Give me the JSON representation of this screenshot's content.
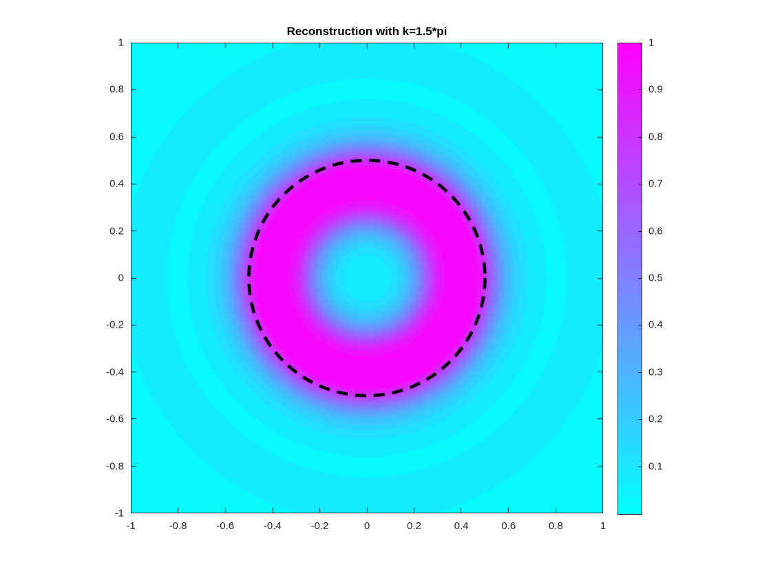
{
  "figure": {
    "background": "#ffffff"
  },
  "chart_data": {
    "type": "heatmap",
    "title": "Reconstruction with k=1.5*pi",
    "x_range": [
      -1,
      1
    ],
    "y_range": [
      -1,
      1
    ],
    "clim": [
      0,
      1
    ],
    "grid": false,
    "x_ticks": [
      "-1",
      "-0.8",
      "-0.6",
      "-0.4",
      "-0.2",
      "0",
      "0.2",
      "0.4",
      "0.6",
      "0.8",
      "1"
    ],
    "x_tick_values": [
      -1,
      -0.8,
      -0.6,
      -0.4,
      -0.2,
      0,
      0.2,
      0.4,
      0.6,
      0.8,
      1
    ],
    "y_ticks": [
      "1",
      "0.8",
      "0.6",
      "0.4",
      "0.2",
      "0",
      "-0.2",
      "-0.4",
      "-0.6",
      "-0.8",
      "-1"
    ],
    "y_tick_values": [
      1,
      0.8,
      0.6,
      0.4,
      0.2,
      0,
      -0.2,
      -0.4,
      -0.6,
      -0.8,
      -1
    ],
    "colormap": "cool",
    "colormap_stops": [
      {
        "v": 0,
        "color": "#00ffff"
      },
      {
        "v": 1,
        "color": "#ff00ff"
      }
    ],
    "contour_levels": 20,
    "radial_profile": {
      "description": "Radially symmetric reconstructed field value vs radius r from origin (estimated from contour bands)",
      "r": [
        0.0,
        0.06,
        0.1,
        0.14,
        0.18,
        0.22,
        0.26,
        0.3,
        0.34,
        0.38,
        0.43,
        0.47,
        0.5,
        0.53,
        0.56,
        0.59,
        0.63,
        0.67,
        0.71,
        0.76,
        0.82,
        0.9,
        0.98,
        1.06,
        1.2,
        1.45
      ],
      "value": [
        0.07,
        0.08,
        0.1,
        0.16,
        0.28,
        0.45,
        0.68,
        0.88,
        0.97,
        1.0,
        1.0,
        0.95,
        0.8,
        0.6,
        0.44,
        0.3,
        0.18,
        0.11,
        0.08,
        0.05,
        0.04,
        0.07,
        0.08,
        0.04,
        0.03,
        0.02
      ]
    },
    "overlay": {
      "type": "dashed-circle",
      "center": [
        0,
        0
      ],
      "radius": 0.5,
      "color": "#000000",
      "line_width": 4.5,
      "dash": [
        16,
        11
      ]
    },
    "colorbar": {
      "range": [
        0,
        1
      ],
      "ticks": [
        "1",
        "0.9",
        "0.8",
        "0.7",
        "0.6",
        "0.5",
        "0.4",
        "0.3",
        "0.2",
        "0.1"
      ],
      "tick_values": [
        1,
        0.9,
        0.8,
        0.7,
        0.6,
        0.5,
        0.4,
        0.3,
        0.2,
        0.1
      ]
    }
  }
}
